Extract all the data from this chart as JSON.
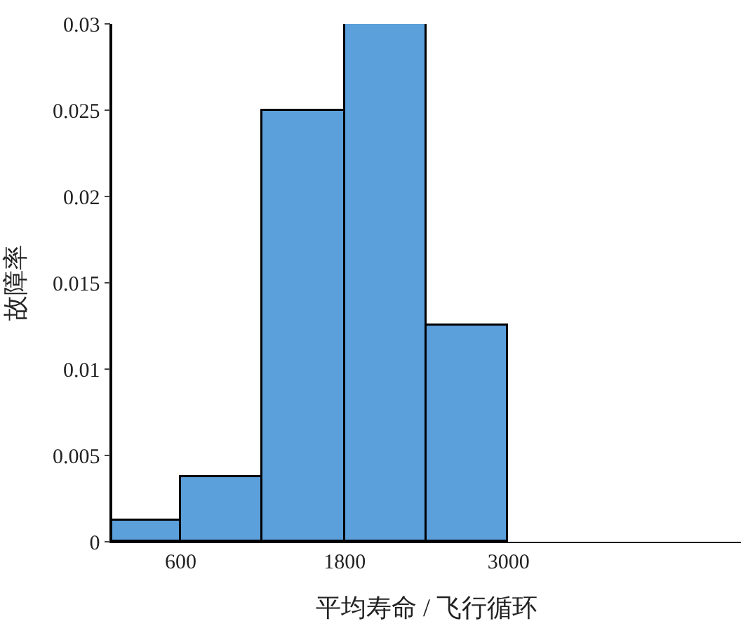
{
  "chart_data": {
    "type": "histogram",
    "xlabel": "平均寿命 / 飞行循环",
    "ylabel": "故障率",
    "bins": [
      100,
      600,
      1200,
      1800,
      2400,
      3000
    ],
    "values": [
      0.0012,
      0.0037,
      0.025,
      0.03,
      0.0125
    ],
    "color": "#5b9fdb",
    "xlim": [
      100,
      4700
    ],
    "xticks": [
      600,
      1800,
      3000
    ],
    "ylim": [
      0,
      0.03
    ],
    "yticks": [
      0,
      0.005,
      0.01,
      0.015,
      0.02,
      0.025,
      0.03
    ]
  }
}
